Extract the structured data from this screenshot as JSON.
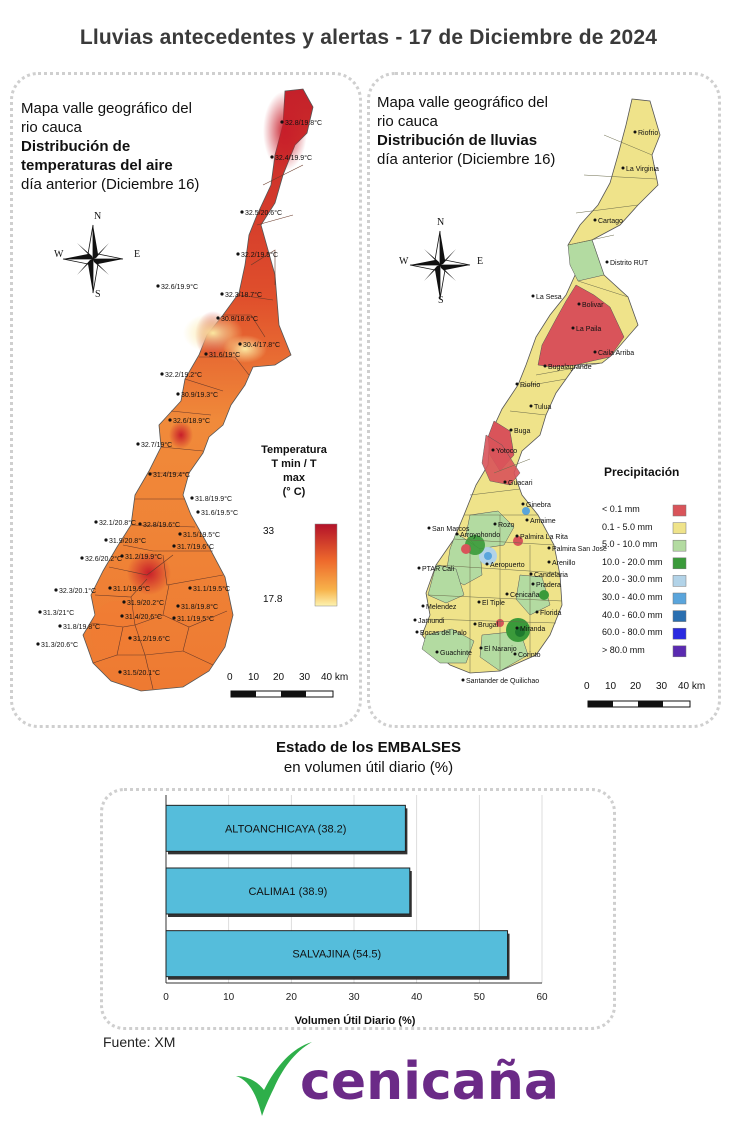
{
  "header": {
    "title": "Lluvias antecedentes y alertas - 17 de Diciembre de 2024"
  },
  "temperature_panel": {
    "title_line1": "Mapa valle geográfico del",
    "title_line2": "rio cauca",
    "title_line3": "Distribución de",
    "title_line4": "temperaturas del aire",
    "title_line5": "día anterior (Diciembre 16)",
    "legend_title_line1": "Temperatura",
    "legend_title_line2": "T min / T max",
    "legend_title_line3": "(° C)",
    "legend_max": "33",
    "legend_min": "17.8",
    "scale_labels": [
      "0",
      "10",
      "20",
      "30",
      "40 km"
    ],
    "compass": {
      "n": "N",
      "s": "S",
      "e": "E",
      "w": "W"
    },
    "stations": [
      "32.8/19.8°C",
      "32.4/19.9°C",
      "32.5/20.6°C",
      "32.2/19.5°C",
      "32.6/19.9°C",
      "32.3/18.7°C",
      "30.8/18.6°C",
      "30.4/17.8°C",
      "31.6/19°C",
      "32.2/19.2°C",
      "30.9/19.3°C",
      "32.6/18.9°C",
      "32.7/19°C",
      "31.4/19.4°C",
      "31.8/19.9°C",
      "31.6/19.5°C",
      "32.1/20.8°C",
      "32.8/19.6°C",
      "31.5/19.5°C",
      "31.9/20.8°C",
      "31.7/19.6°C",
      "32.6/20.2°C",
      "31.2/19.9°C",
      "32.3/20.1°C",
      "31.1/19.9°C",
      "31.1/19.5°C",
      "31.9/20.2°C",
      "31.8/19.8°C",
      "31.3/21°C",
      "31.4/20.6°C",
      "31.1/19.5°C",
      "31.8/19.8°C",
      "31.3/20.6°C",
      "31.2/19.6°C",
      "31.5/20.1°C"
    ]
  },
  "rain_panel": {
    "title_line1": "Mapa valle geográfico del",
    "title_line2": "rio cauca",
    "title_line3": "Distribución de lluvias",
    "title_line4": "día anterior (Diciembre 16)",
    "legend_title": "Precipitación",
    "legend_items": [
      {
        "label": "< 0.1 mm",
        "color": "#d9545a"
      },
      {
        "label": "0.1 - 5.0 mm",
        "color": "#efe38a"
      },
      {
        "label": "5.0 - 10.0 mm",
        "color": "#b3dba1"
      },
      {
        "label": "10.0 - 20.0 mm",
        "color": "#3a9a3a"
      },
      {
        "label": "20.0 - 30.0 mm",
        "color": "#b2d3e8"
      },
      {
        "label": "30.0 - 40.0 mm",
        "color": "#5aa5dc"
      },
      {
        "label": "40.0 - 60.0 mm",
        "color": "#2a6fb0"
      },
      {
        "label": "60.0 - 80.0 mm",
        "color": "#2a2ae0"
      },
      {
        "label": "> 80.0 mm",
        "color": "#5a2ab0"
      }
    ],
    "scale_labels": [
      "0",
      "10",
      "20",
      "30",
      "40 km"
    ],
    "compass": {
      "n": "N",
      "s": "S",
      "e": "E",
      "w": "W"
    },
    "places": [
      "Riofrio",
      "La Virginia",
      "Cartago",
      "Distrito RUT",
      "La Sesa",
      "Bolivar",
      "La Paila",
      "Bugalagrande",
      "Caila Arriba",
      "Riofrio",
      "Tulua",
      "Buga",
      "Yotoco",
      "Guacari",
      "Ginebra",
      "San Marcos",
      "Arroyohondo",
      "Rozo",
      "Amaime",
      "Palmira La Rita",
      "Palmira San Jose",
      "Aeropuerto",
      "Arenillo",
      "Candelaria",
      "PTAR Cali",
      "Pradera",
      "El Tiple",
      "Cenicaña",
      "Melendez",
      "Florida",
      "Jamundi",
      "Bocas del Palo",
      "Brugal",
      "Miranda",
      "El Naranjo",
      "Guachinte",
      "Corinto",
      "Santander de Quilichao"
    ]
  },
  "embalses": {
    "title_bold": "Estado de los EMBALSES",
    "subtitle": "en volumen útil diario (%)",
    "xlabel": "Volumen Útil Diario (%)"
  },
  "chart_data": {
    "type": "bar",
    "orientation": "horizontal",
    "categories": [
      "ALTOANCHICAYA (38.2)",
      "CALIMA1 (38.9)",
      "SALVAJINA (54.5)"
    ],
    "values": [
      38.2,
      38.9,
      54.5
    ],
    "xlabel": "Volumen Útil Diario (%)",
    "xlim": [
      0,
      60
    ],
    "xticks": [
      0,
      10,
      20,
      30,
      40,
      50,
      60
    ],
    "bar_color": "#55bddb",
    "grid": true
  },
  "footer": {
    "source": "Fuente: XM",
    "logo_text": "cenicaña",
    "logo_colors": {
      "text": "#6b2a87",
      "mark": "#2eaf4a"
    }
  }
}
